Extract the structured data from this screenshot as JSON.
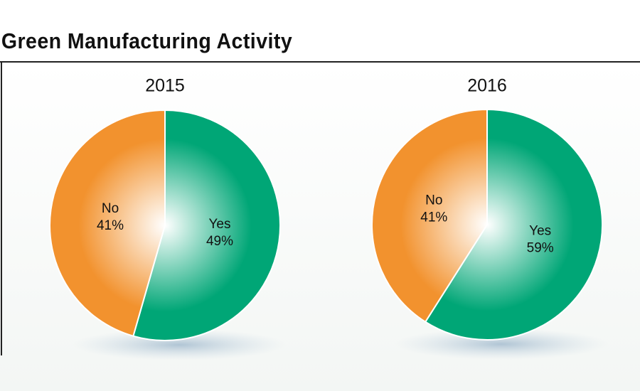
{
  "title": "Green Manufacturing Activity",
  "chart_data": [
    {
      "type": "pie",
      "title": "2015",
      "categories": [
        "Yes",
        "No"
      ],
      "values": [
        49,
        41
      ],
      "value_labels": [
        "49%",
        "41%"
      ],
      "colors": [
        "#00a676",
        "#f2922e"
      ]
    },
    {
      "type": "pie",
      "title": "2016",
      "categories": [
        "Yes",
        "No"
      ],
      "values": [
        59,
        41
      ],
      "value_labels": [
        "59%",
        "41%"
      ],
      "colors": [
        "#00a676",
        "#f2922e"
      ]
    }
  ]
}
